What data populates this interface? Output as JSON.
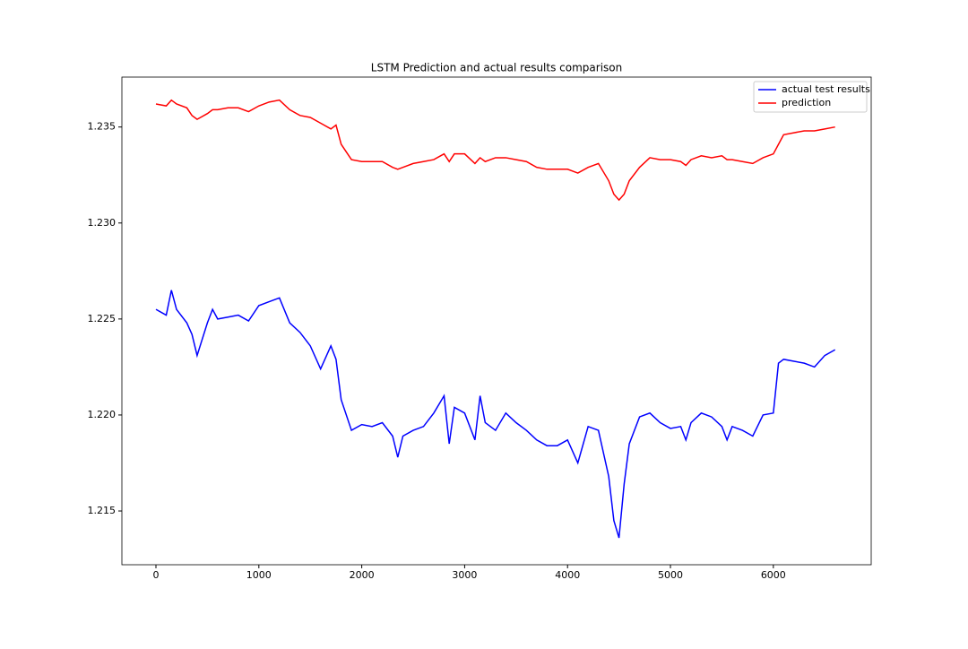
{
  "chart_data": {
    "type": "line",
    "title": "LSTM Prediction and actual results comparison",
    "x": [
      0,
      100,
      150,
      200,
      300,
      350,
      400,
      500,
      550,
      600,
      700,
      800,
      900,
      1000,
      1100,
      1200,
      1300,
      1400,
      1500,
      1600,
      1700,
      1750,
      1800,
      1900,
      2000,
      2100,
      2200,
      2300,
      2350,
      2400,
      2500,
      2600,
      2700,
      2800,
      2850,
      2900,
      3000,
      3100,
      3150,
      3200,
      3300,
      3400,
      3500,
      3600,
      3700,
      3800,
      3900,
      4000,
      4100,
      4200,
      4300,
      4400,
      4450,
      4500,
      4550,
      4600,
      4700,
      4800,
      4900,
      5000,
      5100,
      5150,
      5200,
      5300,
      5400,
      5500,
      5550,
      5600,
      5700,
      5800,
      5900,
      6000,
      6050,
      6100,
      6200,
      6300,
      6400,
      6500,
      6600
    ],
    "series": [
      {
        "name": "actual test results",
        "color": "#0000ff",
        "values": [
          1.2255,
          1.2252,
          1.2265,
          1.2255,
          1.2248,
          1.2242,
          1.2231,
          1.2248,
          1.2255,
          1.225,
          1.2251,
          1.2252,
          1.2249,
          1.2257,
          1.2259,
          1.2261,
          1.2248,
          1.2243,
          1.2236,
          1.2224,
          1.2236,
          1.2229,
          1.2208,
          1.2192,
          1.2195,
          1.2194,
          1.2196,
          1.2189,
          1.2178,
          1.2189,
          1.2192,
          1.2194,
          1.2201,
          1.221,
          1.2185,
          1.2204,
          1.2201,
          1.2187,
          1.221,
          1.2196,
          1.2192,
          1.2201,
          1.2196,
          1.2192,
          1.2187,
          1.2184,
          1.2184,
          1.2187,
          1.2175,
          1.2194,
          1.2192,
          1.2168,
          1.2145,
          1.2136,
          1.2164,
          1.2185,
          1.2199,
          1.2201,
          1.2196,
          1.2193,
          1.2194,
          1.2187,
          1.2196,
          1.2201,
          1.2199,
          1.2194,
          1.2187,
          1.2194,
          1.2192,
          1.2189,
          1.22,
          1.2201,
          1.2227,
          1.2229,
          1.2228,
          1.2227,
          1.2225,
          1.2231,
          1.2234
        ]
      },
      {
        "name": "prediction",
        "color": "#ff0000",
        "values": [
          1.2362,
          1.2361,
          1.2364,
          1.2362,
          1.236,
          1.2356,
          1.2354,
          1.2357,
          1.2359,
          1.2359,
          1.236,
          1.236,
          1.2358,
          1.2361,
          1.2363,
          1.2364,
          1.2359,
          1.2356,
          1.2355,
          1.2352,
          1.2349,
          1.2351,
          1.2341,
          1.2333,
          1.2332,
          1.2332,
          1.2332,
          1.2329,
          1.2328,
          1.2329,
          1.2331,
          1.2332,
          1.2333,
          1.2336,
          1.2332,
          1.2336,
          1.2336,
          1.2331,
          1.2334,
          1.2332,
          1.2334,
          1.2334,
          1.2333,
          1.2332,
          1.2329,
          1.2328,
          1.2328,
          1.2328,
          1.2326,
          1.2329,
          1.2331,
          1.2322,
          1.2315,
          1.2312,
          1.2315,
          1.2322,
          1.2329,
          1.2334,
          1.2333,
          1.2333,
          1.2332,
          1.233,
          1.2333,
          1.2335,
          1.2334,
          1.2335,
          1.2333,
          1.2333,
          1.2332,
          1.2331,
          1.2334,
          1.2336,
          1.2341,
          1.2346,
          1.2347,
          1.2348,
          1.2348,
          1.2349,
          1.235
        ]
      }
    ],
    "xlim": [
      -331,
      6951
    ],
    "xticks": [
      0,
      1000,
      2000,
      3000,
      4000,
      5000,
      6000
    ],
    "ylim": [
      1.2122,
      1.2376
    ],
    "yticks": [
      1.215,
      {
        "value": 1.22,
        "label": "1.220"
      },
      1.225,
      {
        "value": 1.23,
        "label": "1.230"
      },
      1.235
    ],
    "legend": "upper right"
  }
}
